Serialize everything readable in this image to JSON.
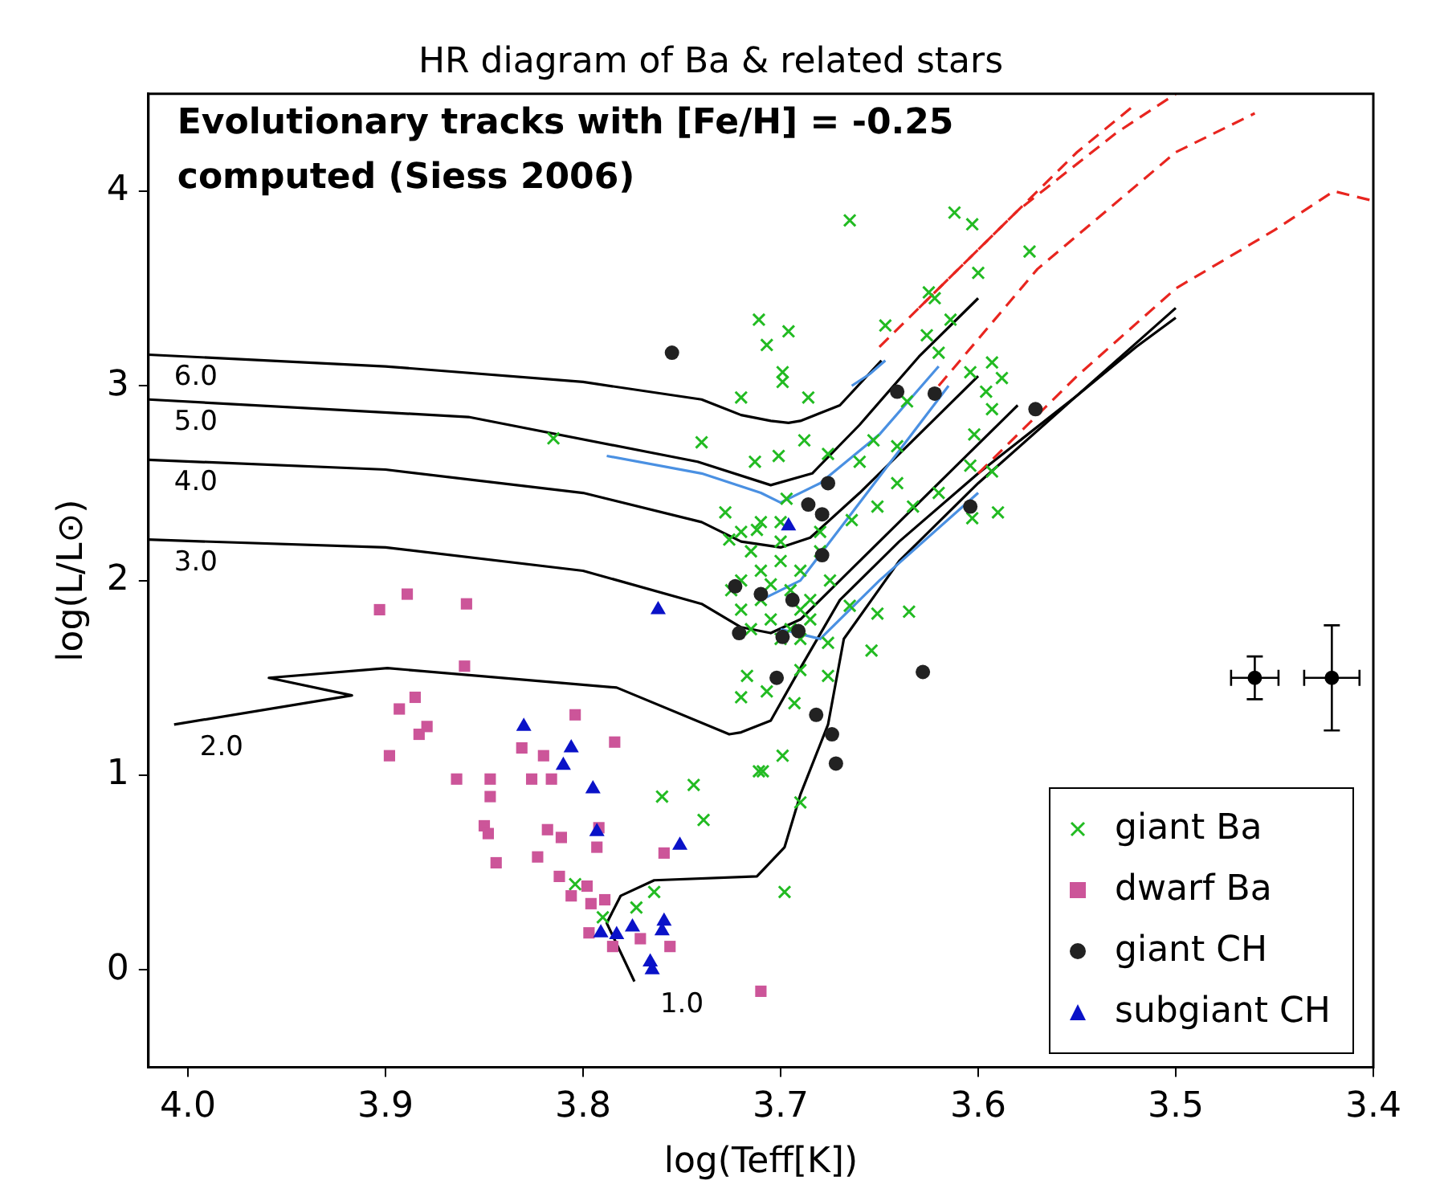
{
  "chart_data": {
    "type": "scatter",
    "title": "HR diagram of Ba & related stars",
    "xlabel": "log(Teff[K])",
    "ylabel": "log(L/L⊙)",
    "xlim": [
      4.02,
      3.4
    ],
    "xticks": [
      {
        "value": 4.0,
        "label": "4.0"
      },
      3.9,
      3.8,
      3.7,
      3.6,
      3.5,
      {
        "value": 3.4,
        "label": "3.4"
      }
    ],
    "ylim": [
      -0.5,
      4.5
    ],
    "yticks": [
      0,
      1,
      2,
      3,
      4
    ],
    "grid": false,
    "legend": "bottom right",
    "annotations": [
      "Evolutionary tracks with [Fe/H] = -0.25",
      "computed (Siess 2006)",
      {
        "text": "6.0",
        "x": 4.02,
        "y": 3.16
      },
      {
        "text": "5.0",
        "x": 4.02,
        "y": 2.93
      },
      {
        "text": "4.0",
        "x": 4.02,
        "y": 2.62
      },
      {
        "text": "3.0",
        "x": 4.02,
        "y": 2.21
      },
      {
        "text": "2.0",
        "x": 4.007,
        "y": 1.26
      },
      {
        "text": "1.0",
        "x": 3.774,
        "y": -0.06
      }
    ],
    "series": [
      {
        "type": "line",
        "color": "#000000",
        "marker": "none",
        "line_style": "solid",
        "x": [
          4.02,
          3.9,
          3.8,
          3.74,
          3.72,
          3.705,
          3.696,
          3.69,
          3.67,
          3.649
        ],
        "values": [
          3.16,
          3.1,
          3.02,
          2.93,
          2.85,
          2.82,
          2.81,
          2.82,
          2.9,
          3.13
        ]
      },
      {
        "type": "line",
        "color": "#000000",
        "marker": "none",
        "line_style": "solid",
        "x": [
          4.02,
          3.858,
          3.742,
          3.705,
          3.684,
          3.66,
          3.63,
          3.6
        ],
        "values": [
          2.93,
          2.84,
          2.61,
          2.49,
          2.55,
          2.8,
          3.15,
          3.45
        ]
      },
      {
        "type": "line",
        "color": "#000000",
        "marker": "none",
        "line_style": "solid",
        "x": [
          4.02,
          3.9,
          3.8,
          3.74,
          3.72,
          3.7,
          3.685,
          3.66,
          3.63,
          3.6
        ],
        "values": [
          2.62,
          2.57,
          2.45,
          2.3,
          2.2,
          2.17,
          2.22,
          2.45,
          2.75,
          3.05
        ]
      },
      {
        "type": "line",
        "color": "#000000",
        "marker": "none",
        "line_style": "solid",
        "x": [
          4.02,
          3.9,
          3.8,
          3.74,
          3.72,
          3.705,
          3.69,
          3.67,
          3.64,
          3.61,
          3.58
        ],
        "values": [
          2.21,
          2.17,
          2.05,
          1.88,
          1.76,
          1.73,
          1.8,
          2.0,
          2.3,
          2.6,
          2.9
        ]
      },
      {
        "type": "line",
        "color": "#000000",
        "marker": "none",
        "line_style": "solid",
        "x": [
          4.007,
          3.917,
          3.959,
          3.899,
          3.783,
          3.726,
          3.72,
          3.705,
          3.69,
          3.67,
          3.64,
          3.6,
          3.55,
          3.5
        ],
        "values": [
          1.26,
          1.41,
          1.5,
          1.55,
          1.45,
          1.21,
          1.22,
          1.28,
          1.55,
          1.9,
          2.2,
          2.55,
          2.95,
          3.4
        ]
      },
      {
        "type": "line",
        "color": "#000000",
        "marker": "none",
        "line_style": "solid",
        "x": [
          3.774,
          3.788,
          3.781,
          3.764,
          3.712,
          3.698,
          3.69,
          3.676,
          3.668,
          3.64,
          3.6,
          3.55,
          3.52,
          3.5
        ],
        "values": [
          -0.06,
          0.24,
          0.38,
          0.46,
          0.48,
          0.63,
          0.9,
          1.26,
          1.7,
          2.1,
          2.5,
          2.95,
          3.2,
          3.35
        ]
      },
      {
        "type": "line",
        "color": "#4a90e2",
        "marker": "none",
        "line_style": "solid",
        "x": [
          3.788,
          3.74,
          3.71,
          3.7,
          3.68,
          3.65,
          3.62
        ],
        "values": [
          2.64,
          2.55,
          2.45,
          2.4,
          2.5,
          2.75,
          3.1
        ]
      },
      {
        "type": "line",
        "color": "#4a90e2",
        "marker": "none",
        "line_style": "solid",
        "x": [
          3.71,
          3.69,
          3.66,
          3.63,
          3.615
        ],
        "values": [
          1.9,
          2.0,
          2.4,
          2.8,
          3.0
        ]
      },
      {
        "type": "line",
        "color": "#4a90e2",
        "marker": "none",
        "line_style": "solid",
        "x": [
          3.7,
          3.68,
          3.65,
          3.6
        ],
        "values": [
          1.75,
          1.7,
          2.0,
          2.45
        ]
      },
      {
        "type": "line",
        "color": "#4a90e2",
        "marker": "none",
        "line_style": "solid",
        "x": [
          3.664,
          3.655,
          3.647
        ],
        "values": [
          3.0,
          3.06,
          3.13
        ]
      },
      {
        "type": "line",
        "color": "#e8251f",
        "marker": "none",
        "line_style": "dashed",
        "x": [
          3.65,
          3.6,
          3.55,
          3.52
        ],
        "values": [
          3.2,
          3.7,
          4.2,
          4.45
        ]
      },
      {
        "type": "line",
        "color": "#e8251f",
        "marker": "none",
        "line_style": "dashed",
        "x": [
          3.62,
          3.57,
          3.5,
          3.46
        ],
        "values": [
          3.0,
          3.6,
          4.2,
          4.4
        ]
      },
      {
        "type": "line",
        "color": "#e8251f",
        "marker": "none",
        "line_style": "dashed",
        "x": [
          3.6,
          3.55,
          3.5,
          3.45,
          3.42,
          3.4
        ],
        "values": [
          2.55,
          3.05,
          3.5,
          3.8,
          4.0,
          3.95
        ]
      },
      {
        "type": "line",
        "color": "#e8251f",
        "marker": "none",
        "line_style": "dashed",
        "x": [
          3.63,
          3.58,
          3.53,
          3.5
        ],
        "values": [
          3.4,
          3.9,
          4.3,
          4.5
        ]
      },
      {
        "name": "giant Ba",
        "color": "#22bb22",
        "marker": "cross",
        "x": [
          3.711,
          3.707,
          3.696,
          3.699,
          3.699,
          3.72,
          3.686,
          3.647,
          3.625,
          3.626,
          3.614,
          3.6,
          3.574,
          3.74,
          3.688,
          3.713,
          3.701,
          3.676,
          3.653,
          3.641,
          3.636,
          3.62,
          3.604,
          3.593,
          3.596,
          3.602,
          3.593,
          3.588,
          3.604,
          3.593,
          3.62,
          3.633,
          3.59,
          3.603,
          3.728,
          3.726,
          3.712,
          3.697,
          3.664,
          3.651,
          3.641,
          3.66,
          3.715,
          3.71,
          3.705,
          3.7,
          3.695,
          3.69,
          3.685,
          3.71,
          3.72,
          3.705,
          3.695,
          3.69,
          3.7,
          3.68,
          3.675,
          3.715,
          3.72,
          3.725,
          3.7,
          3.685,
          3.69,
          3.68,
          3.7,
          3.71,
          3.72,
          3.665,
          3.651,
          3.635,
          3.654,
          3.676,
          3.69,
          3.717,
          3.72,
          3.707,
          3.693,
          3.676,
          3.709,
          3.744,
          3.76,
          3.739,
          3.711,
          3.69,
          3.698,
          3.764,
          3.773,
          3.79,
          3.804,
          3.815,
          3.665,
          3.612,
          3.603,
          3.622,
          3.699
        ],
        "values": [
          3.34,
          3.21,
          3.28,
          3.07,
          3.02,
          2.94,
          2.94,
          3.31,
          3.48,
          3.26,
          3.34,
          3.58,
          3.69,
          2.71,
          2.72,
          2.61,
          2.64,
          2.65,
          2.72,
          2.69,
          2.92,
          3.17,
          3.07,
          3.12,
          2.97,
          2.75,
          2.88,
          3.04,
          2.59,
          2.56,
          2.45,
          2.38,
          2.35,
          2.32,
          2.35,
          2.21,
          2.26,
          2.42,
          2.31,
          2.38,
          2.5,
          2.61,
          2.15,
          2.05,
          1.98,
          2.1,
          1.95,
          2.05,
          1.9,
          1.9,
          1.85,
          1.8,
          1.75,
          1.85,
          2.2,
          2.15,
          2.0,
          1.75,
          2.0,
          1.95,
          1.7,
          1.8,
          1.7,
          2.25,
          2.3,
          2.3,
          2.25,
          1.87,
          1.83,
          1.84,
          1.64,
          1.68,
          1.54,
          1.51,
          1.4,
          1.43,
          1.37,
          1.51,
          1.02,
          0.95,
          0.89,
          0.77,
          1.02,
          0.86,
          0.4,
          0.4,
          0.32,
          0.27,
          0.44,
          2.73,
          3.85,
          3.89,
          3.83,
          3.45,
          1.1
        ]
      },
      {
        "name": "dwarf Ba",
        "color": "#cc5599",
        "marker": "square",
        "x": [
          3.903,
          3.889,
          3.859,
          3.86,
          3.893,
          3.885,
          3.883,
          3.879,
          3.898,
          3.864,
          3.847,
          3.847,
          3.85,
          3.848,
          3.844,
          3.826,
          3.816,
          3.831,
          3.82,
          3.804,
          3.784,
          3.818,
          3.811,
          3.823,
          3.812,
          3.806,
          3.798,
          3.796,
          3.789,
          3.797,
          3.785,
          3.771,
          3.792,
          3.793,
          3.759,
          3.756,
          3.71
        ],
        "values": [
          1.85,
          1.93,
          1.88,
          1.56,
          1.34,
          1.4,
          1.21,
          1.25,
          1.1,
          0.98,
          0.98,
          0.89,
          0.74,
          0.7,
          0.55,
          0.98,
          0.98,
          1.14,
          1.1,
          1.31,
          1.17,
          0.72,
          0.68,
          0.58,
          0.48,
          0.38,
          0.43,
          0.34,
          0.36,
          0.19,
          0.12,
          0.16,
          0.73,
          0.63,
          0.6,
          0.12,
          -0.11
        ]
      },
      {
        "name": "giant CH",
        "color": "#222222",
        "marker": "circle",
        "x": [
          3.755,
          3.641,
          3.622,
          3.571,
          3.676,
          3.686,
          3.679,
          3.679,
          3.723,
          3.71,
          3.694,
          3.721,
          3.699,
          3.691,
          3.702,
          3.628,
          3.682,
          3.674,
          3.672,
          3.604
        ],
        "values": [
          3.17,
          2.97,
          2.96,
          2.88,
          2.5,
          2.39,
          2.34,
          2.13,
          1.97,
          1.93,
          1.9,
          1.73,
          1.71,
          1.74,
          1.5,
          1.53,
          1.31,
          1.21,
          1.06,
          2.38
        ]
      },
      {
        "name": "subgiant CH",
        "color": "#0a12c8",
        "marker": "triangle",
        "x": [
          3.762,
          3.83,
          3.806,
          3.81,
          3.795,
          3.793,
          3.751,
          3.791,
          3.783,
          3.775,
          3.759,
          3.76,
          3.766,
          3.765,
          3.696
        ],
        "values": [
          1.85,
          1.25,
          1.14,
          1.05,
          0.93,
          0.71,
          0.64,
          0.19,
          0.18,
          0.22,
          0.25,
          0.2,
          0.04,
          0.0,
          2.28
        ]
      },
      {
        "color": "#000000",
        "marker": "circle",
        "x": [
          3.46,
          3.421
        ],
        "values": [
          1.5,
          1.5
        ],
        "errors": [
          0.11,
          0.27
        ],
        "xerrors": [
          0.012,
          0.014
        ]
      }
    ]
  }
}
